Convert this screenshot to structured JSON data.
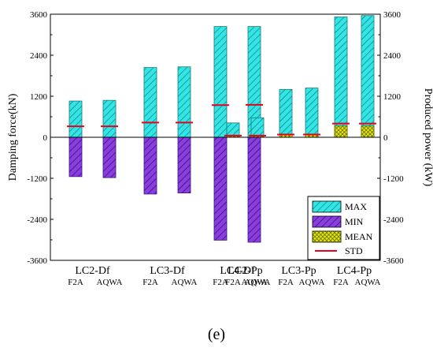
{
  "chart_data": {
    "type": "bar",
    "ylabel": "Damping force(kN)",
    "y2label": "Produced power (kW)",
    "ylim": [
      -3600,
      3600
    ],
    "y2lim": [
      -3600,
      3600
    ],
    "yticks": [
      "-3600",
      "-2400",
      "-1200",
      "0",
      "1200",
      "2400",
      "3600"
    ],
    "yticks_right": [
      "-3600",
      "-2400",
      "-1200",
      "0",
      "1200",
      "2400",
      "3600"
    ],
    "grid": false,
    "legend_position": "bottom-right",
    "groups": [
      {
        "label": "LC2-Df",
        "sub": [
          "F2A",
          "AQWA"
        ]
      },
      {
        "label": "LC3-Df",
        "sub": [
          "F2A",
          "AQWA"
        ]
      },
      {
        "label": "LC4-Df",
        "sub": [
          "F2A",
          "AQWA"
        ]
      },
      {
        "label": "LC2-Pp",
        "sub": [
          "F2A",
          "AQWA"
        ]
      },
      {
        "label": "LC3-Pp",
        "sub": [
          "F2A",
          "AQWA"
        ]
      },
      {
        "label": "LC4-Pp",
        "sub": [
          "F2A",
          "AQWA"
        ]
      }
    ],
    "categories": [
      "LC2-Df F2A",
      "LC2-Df AQWA",
      "LC3-Df F2A",
      "LC3-Df AQWA",
      "LC4-Df F2A",
      "LC4-Df AQWA",
      "LC2-Pp F2A",
      "LC2-Pp AQWA",
      "LC3-Pp F2A",
      "LC3-Pp AQWA",
      "LC4-Pp F2A",
      "LC4-Pp AQWA"
    ],
    "series": [
      {
        "name": "MAX",
        "color": "#33e5e5",
        "values": [
          1060,
          1080,
          2040,
          2060,
          3240,
          3240,
          420,
          570,
          1400,
          1440,
          3520,
          3560
        ]
      },
      {
        "name": "MIN",
        "color": "#7b2fd0",
        "values": [
          -1150,
          -1180,
          -1660,
          -1630,
          -3010,
          -3070,
          0,
          0,
          0,
          0,
          0,
          0
        ]
      },
      {
        "name": "MEAN",
        "color": "#d8e000",
        "values": [
          0,
          0,
          0,
          0,
          0,
          0,
          40,
          40,
          80,
          80,
          330,
          330
        ]
      },
      {
        "name": "STD",
        "color": "#e8001c",
        "values": [
          320,
          320,
          430,
          430,
          940,
          950,
          50,
          50,
          80,
          80,
          400,
          400
        ]
      }
    ],
    "caption": "(e)"
  }
}
